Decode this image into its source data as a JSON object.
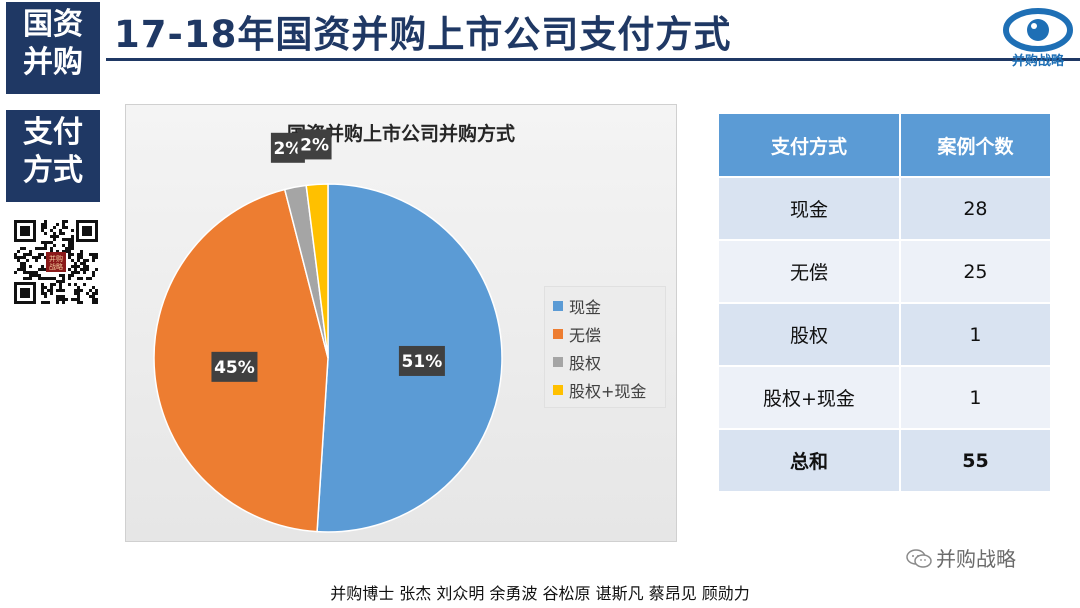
{
  "side_tags": {
    "top": "国资\n并购",
    "mid": "支付\n方式"
  },
  "header": {
    "title": "17-18年国资并购上市公司支付方式"
  },
  "logo": {
    "text": "并购战略",
    "icon": "eye-logo-icon",
    "color": "#1e6fb5"
  },
  "qr_seal_text": "并购\n战略",
  "chart_data": {
    "type": "pie",
    "title": "国资并购上市公司并购方式",
    "categories": [
      "现金",
      "无偿",
      "股权",
      "股权+现金"
    ],
    "values": [
      51,
      45,
      2,
      2
    ],
    "labels": [
      "51%",
      "45%",
      "2%",
      "2%"
    ],
    "colors": [
      "#5b9bd5",
      "#ed7d31",
      "#a5a5a5",
      "#ffc000"
    ],
    "legend": "right"
  },
  "table": {
    "headers": [
      "支付方式",
      "案例个数"
    ],
    "rows": [
      [
        "现金",
        "28"
      ],
      [
        "无偿",
        "25"
      ],
      [
        "股权",
        "1"
      ],
      [
        "股权+现金",
        "1"
      ]
    ],
    "total": [
      "总和",
      "55"
    ]
  },
  "footer": {
    "authors": "并购博士 张杰 刘众明 余勇波 谷松原 谌斯凡 蔡昂见 顾勋力"
  },
  "watermark": {
    "text": "并购战略",
    "icon": "wechat-icon"
  }
}
